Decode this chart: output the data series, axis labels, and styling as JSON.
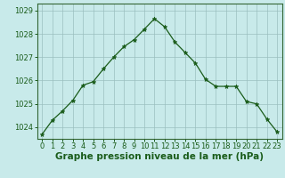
{
  "x": [
    0,
    1,
    2,
    3,
    4,
    5,
    6,
    7,
    8,
    9,
    10,
    11,
    12,
    13,
    14,
    15,
    16,
    17,
    18,
    19,
    20,
    21,
    22,
    23
  ],
  "y": [
    1023.7,
    1024.3,
    1024.7,
    1025.15,
    1025.8,
    1025.95,
    1026.5,
    1027.0,
    1027.45,
    1027.75,
    1028.2,
    1028.65,
    1028.3,
    1027.65,
    1027.2,
    1026.75,
    1026.05,
    1025.75,
    1025.75,
    1025.75,
    1025.1,
    1025.0,
    1024.35,
    1023.8
  ],
  "ylim": [
    1023.5,
    1029.3
  ],
  "yticks": [
    1024,
    1025,
    1026,
    1027,
    1028,
    1029
  ],
  "xlim": [
    -0.5,
    23.5
  ],
  "xticks": [
    0,
    1,
    2,
    3,
    4,
    5,
    6,
    7,
    8,
    9,
    10,
    11,
    12,
    13,
    14,
    15,
    16,
    17,
    18,
    19,
    20,
    21,
    22,
    23
  ],
  "xlabel": "Graphe pression niveau de la mer (hPa)",
  "line_color": "#1a5c1a",
  "marker": "*",
  "marker_size": 3.5,
  "bg_color": "#c8eaea",
  "grid_color": "#9bbfbf",
  "xlabel_fontsize": 7.5,
  "tick_fontsize": 6,
  "title_color": "#1a5c1a",
  "spine_color": "#336633"
}
